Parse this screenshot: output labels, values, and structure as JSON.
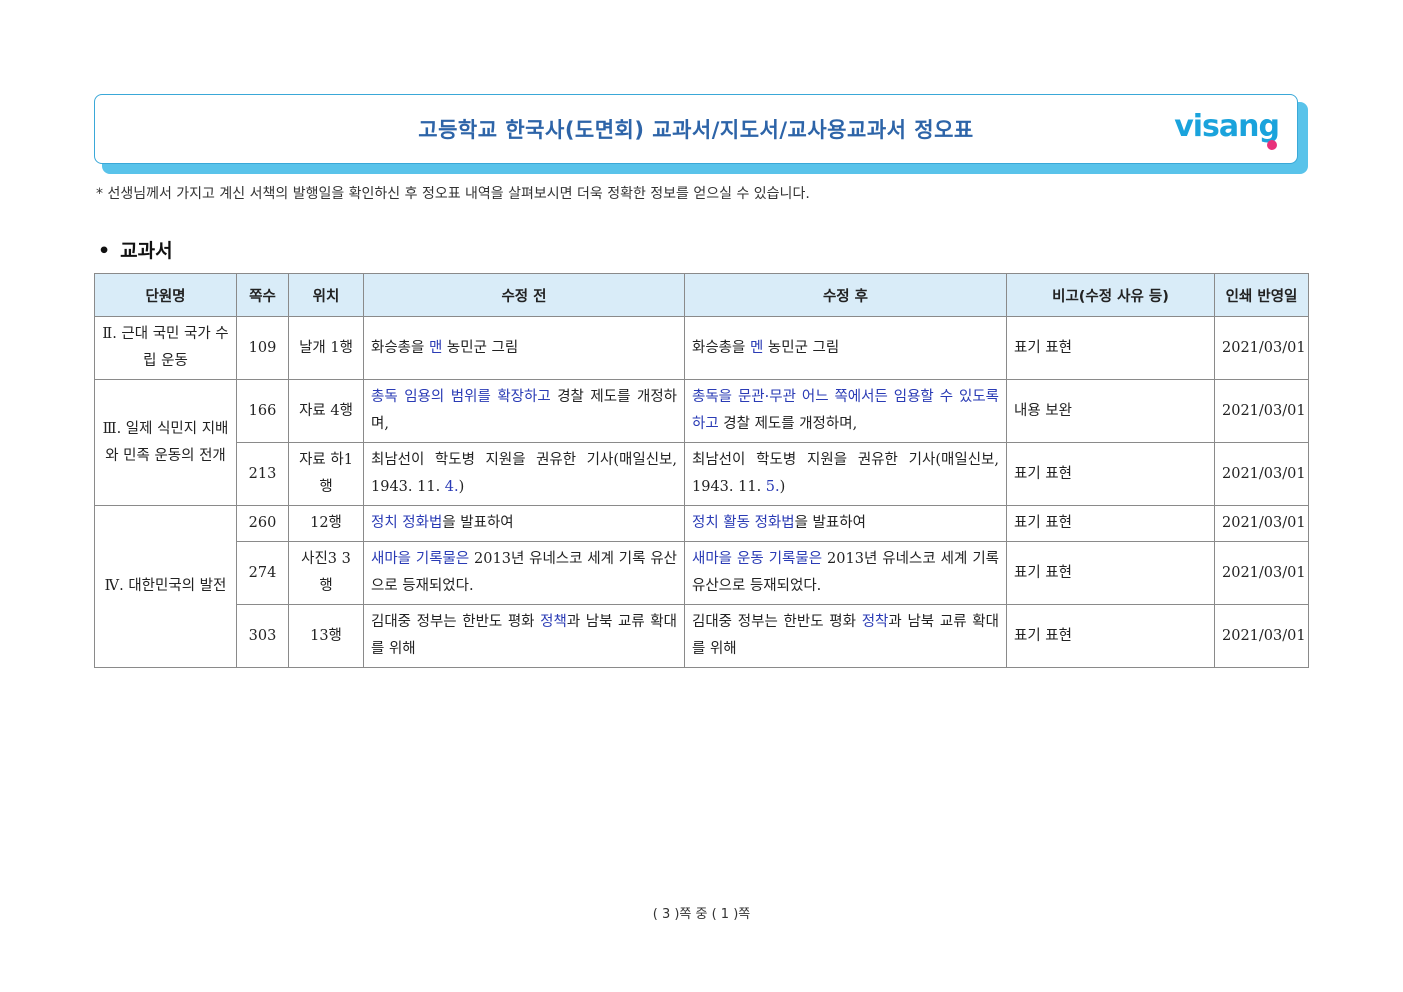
{
  "header": {
    "title": "고등학교 한국사(도면회) 교과서/지도서/교사용교과서 정오표",
    "logo_text": "visang"
  },
  "notice": "* 선생님께서 가지고 계신 서책의 발행일을 확인하신 후 정오표 내역을 살펴보시면 더욱 정확한 정보를 얻으실 수 있습니다.",
  "section": {
    "bullet": "•",
    "title": "교과서"
  },
  "table": {
    "headers": [
      "단원명",
      "쪽수",
      "위치",
      "수정 전",
      "수정 후",
      "비고(수정 사유 등)",
      "인쇄 반영일"
    ],
    "units": {
      "u2": "Ⅱ. 근대 국민 국가 수립 운동",
      "u3": "Ⅲ. 일제 식민지 지배와 민족 운동의 전개",
      "u4": "Ⅳ. 대한민국의 발전"
    },
    "rows": [
      {
        "page": "109",
        "position": "날개 1행",
        "before": [
          {
            "t": "화승총을 "
          },
          {
            "t": "맨",
            "hl": true
          },
          {
            "t": " 농민군 그림"
          }
        ],
        "after": [
          {
            "t": "화승총을 "
          },
          {
            "t": "멘",
            "hl": true
          },
          {
            "t": " 농민군 그림"
          }
        ],
        "note": "표기 표현",
        "date": "2021/03/01"
      },
      {
        "page": "166",
        "position": "자료 4행",
        "before": [
          {
            "t": "총독 임용의 범위를 확장하고",
            "hl": true
          },
          {
            "t": " 경찰 제도를 개정하며,"
          }
        ],
        "after": [
          {
            "t": "총독을 문관·무관 어느 쪽에서든 임용할 수 있도록 하고",
            "hl": true
          },
          {
            "t": " 경찰 제도를 개정하며,"
          }
        ],
        "note": "내용 보완",
        "date": "2021/03/01"
      },
      {
        "page": "213",
        "position": "자료 하1행",
        "before": [
          {
            "t": "최남선이 학도병 지원을 권유한 기사(매일신보, 1943. 11. "
          },
          {
            "t": "4.",
            "hl": true
          },
          {
            "t": ")"
          }
        ],
        "after": [
          {
            "t": "최남선이 학도병 지원을 권유한 기사(매일신보, 1943. 11. "
          },
          {
            "t": "5.",
            "hl": true
          },
          {
            "t": ")"
          }
        ],
        "note": "표기 표현",
        "date": "2021/03/01"
      },
      {
        "page": "260",
        "position": "12행",
        "before": [
          {
            "t": "정치 정화법",
            "hl": true
          },
          {
            "t": "을 발표하여"
          }
        ],
        "after": [
          {
            "t": "정치 활동 정화법",
            "hl": true
          },
          {
            "t": "을 발표하여"
          }
        ],
        "note": "표기 표현",
        "date": "2021/03/01"
      },
      {
        "page": "274",
        "position": "사진3 3행",
        "before": [
          {
            "t": "새마을 기록물은",
            "hl": true
          },
          {
            "t": " 2013년 유네스코 세계 기록 유산으로 등재되었다."
          }
        ],
        "after": [
          {
            "t": "새마을 운동 기록물은",
            "hl": true
          },
          {
            "t": " 2013년 유네스코 세계 기록 유산으로 등재되었다."
          }
        ],
        "note": "표기 표현",
        "date": "2021/03/01"
      },
      {
        "page": "303",
        "position": "13행",
        "before": [
          {
            "t": "김대중 정부는 한반도 평화 "
          },
          {
            "t": "정책",
            "hl": true
          },
          {
            "t": "과 남북 교류 확대를 위해"
          }
        ],
        "after": [
          {
            "t": "김대중 정부는 한반도 평화 "
          },
          {
            "t": "정착",
            "hl": true
          },
          {
            "t": "과 남북 교류 확대를 위해"
          }
        ],
        "note": "표기 표현",
        "date": "2021/03/01"
      }
    ]
  },
  "footer": "( 3 )쪽 중 ( 1 )쪽",
  "colors": {
    "accent": "#2d64a8",
    "header_fill": "#d9ecf8",
    "highlight": "#2a3bb5",
    "logo": "#1aa3dc"
  }
}
